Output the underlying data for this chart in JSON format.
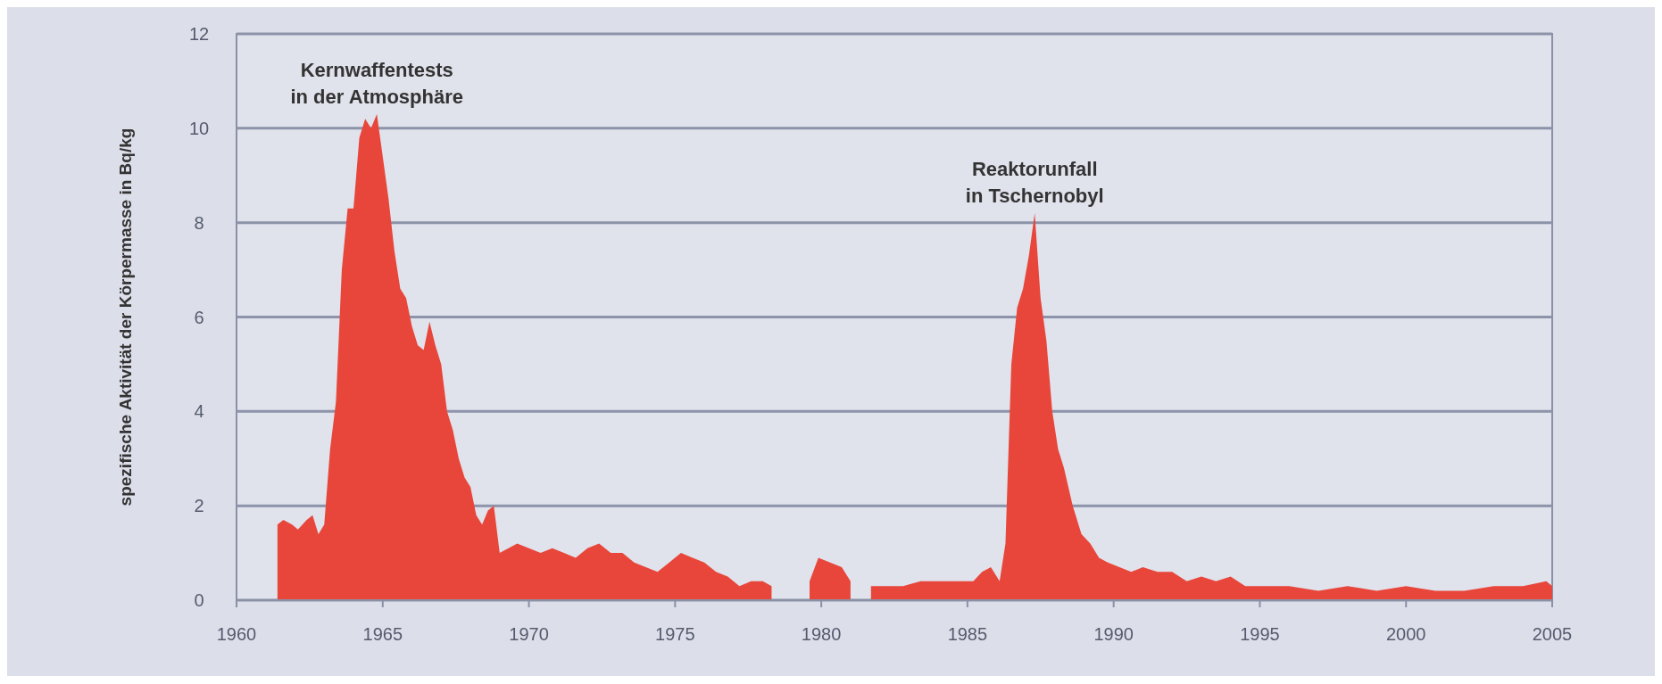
{
  "chart_data": {
    "type": "area",
    "ylabel": "spezifische Aktivität der Körpermasse in Bq/kg",
    "x": [
      1961.4,
      1961.6,
      1961.9,
      1962.1,
      1962.4,
      1962.6,
      1962.8,
      1963.0,
      1963.2,
      1963.4,
      1963.6,
      1963.8,
      1964.0,
      1964.2,
      1964.4,
      1964.6,
      1964.8,
      1965.0,
      1965.2,
      1965.4,
      1965.6,
      1965.8,
      1966.0,
      1966.2,
      1966.4,
      1966.6,
      1966.8,
      1967.0,
      1967.2,
      1967.4,
      1967.6,
      1967.8,
      1968.0,
      1968.2,
      1968.4,
      1968.6,
      1968.8,
      1969.0,
      1969.3,
      1969.6,
      1970.0,
      1970.4,
      1970.8,
      1971.2,
      1971.6,
      1972.0,
      1972.4,
      1972.8,
      1973.2,
      1973.6,
      1974.0,
      1974.4,
      1974.8,
      1975.2,
      1975.6,
      1976.0,
      1976.4,
      1976.8,
      1977.2,
      1977.6,
      1978.0,
      1978.3,
      1978.8,
      1979.6,
      1979.9,
      1980.3,
      1980.7,
      1981.0,
      1981.3,
      1981.7,
      1982.2,
      1982.8,
      1983.4,
      1984.0,
      1984.6,
      1985.2,
      1985.5,
      1985.8,
      1986.1,
      1986.3,
      1986.5,
      1986.7,
      1986.9,
      1987.1,
      1987.3,
      1987.5,
      1987.7,
      1987.9,
      1988.1,
      1988.3,
      1988.6,
      1988.9,
      1989.2,
      1989.5,
      1989.8,
      1990.2,
      1990.6,
      1991.0,
      1991.5,
      1992.0,
      1992.5,
      1993.0,
      1993.5,
      1994.0,
      1994.5,
      1995.0,
      1996.0,
      1997.0,
      1998.0,
      1999.0,
      2000.0,
      2001.0,
      2002.0,
      2003.0,
      2004.0,
      2004.8,
      2005.0
    ],
    "series": [
      {
        "color": "#e8463a",
        "values": [
          1.6,
          1.7,
          1.6,
          1.5,
          1.7,
          1.8,
          1.4,
          1.6,
          3.2,
          4.2,
          7.0,
          8.3,
          8.3,
          9.8,
          10.2,
          10.0,
          10.3,
          9.4,
          8.5,
          7.4,
          6.6,
          6.4,
          5.8,
          5.4,
          5.3,
          5.9,
          5.4,
          5.0,
          4.0,
          3.6,
          3.0,
          2.6,
          2.4,
          1.8,
          1.6,
          1.9,
          2.0,
          1.0,
          1.1,
          1.2,
          1.1,
          1.0,
          1.1,
          1.0,
          0.9,
          1.1,
          1.2,
          1.0,
          1.0,
          0.8,
          0.7,
          0.6,
          0.8,
          1.0,
          0.9,
          0.8,
          0.6,
          0.5,
          0.3,
          0.4,
          0.4,
          0.3,
          null,
          0.4,
          0.9,
          0.8,
          0.7,
          0.4,
          null,
          0.3,
          0.3,
          0.3,
          0.4,
          0.4,
          0.4,
          0.4,
          0.6,
          0.7,
          0.4,
          1.2,
          5.0,
          6.2,
          6.6,
          7.3,
          8.2,
          6.4,
          5.5,
          4.0,
          3.2,
          2.8,
          2.0,
          1.4,
          1.2,
          0.9,
          0.8,
          0.7,
          0.6,
          0.7,
          0.6,
          0.6,
          0.4,
          0.5,
          0.4,
          0.5,
          0.3,
          0.3,
          0.3,
          0.2,
          0.3,
          0.2,
          0.3,
          0.2,
          0.2,
          0.3,
          0.3,
          0.4,
          0.3
        ]
      }
    ],
    "xlim": [
      1960,
      2005
    ],
    "xticks": [
      1960,
      1965,
      1970,
      1975,
      1980,
      1985,
      1990,
      1995,
      2000,
      2005
    ],
    "ylim": [
      0,
      12
    ],
    "yticks": [
      0,
      2,
      4,
      6,
      8,
      10,
      12
    ],
    "grid": "y",
    "annotations": [
      {
        "text": "Kernwaffentests\nin der Atmosphäre",
        "x": 1964.8,
        "y": 10.3
      },
      {
        "text": "Reaktorunfall\nin Tschernobyl",
        "x": 1987.3,
        "y": 8.2
      }
    ]
  }
}
